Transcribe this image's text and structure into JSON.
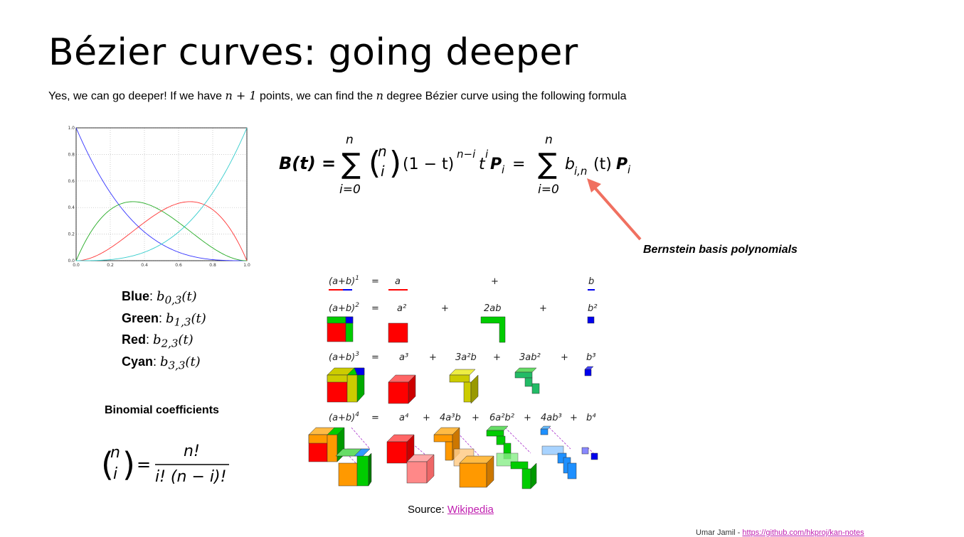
{
  "slide": {
    "title": "Bézier curves: going deeper",
    "subtitle_pre": "Yes, we can go deeper! If we have ",
    "subtitle_n1": "n + 1",
    "subtitle_mid": " points, we can find the ",
    "subtitle_n": "n",
    "subtitle_post": " degree Bézier curve using the following formula",
    "bernstein_label": "Bernstein basis polynomials",
    "binomial_label": "Binomial coefficients",
    "source_prefix": "Source: ",
    "source_link": "Wikipedia",
    "footer_author": "Umar Jamil - ",
    "footer_link": "https://github.com/hkproj/kan-notes"
  },
  "legend": [
    {
      "color_name": "Blue",
      "basis": "b",
      "sub": "0,3",
      "arg": "(t)"
    },
    {
      "color_name": "Green",
      "basis": "b",
      "sub": "1,3",
      "arg": "(t)"
    },
    {
      "color_name": "Red",
      "basis": "b",
      "sub": "2,3",
      "arg": "(t)"
    },
    {
      "color_name": "Cyan",
      "basis": "b",
      "sub": "3,3",
      "arg": "(t)"
    }
  ],
  "chart_data": {
    "type": "line",
    "xlim": [
      0,
      1
    ],
    "ylim": [
      0,
      1
    ],
    "xticks": [
      "0.0",
      "0.2",
      "0.4",
      "0.6",
      "0.8",
      "1.0"
    ],
    "yticks": [
      "0.0",
      "0.2",
      "0.4",
      "0.6",
      "0.8",
      "1.0"
    ],
    "grid": true,
    "series": [
      {
        "color": "#3333ff",
        "degree": 3,
        "i": 0
      },
      {
        "color": "#22aa22",
        "degree": 3,
        "i": 1
      },
      {
        "color": "#ff3333",
        "degree": 3,
        "i": 2
      },
      {
        "color": "#33cccc",
        "degree": 3,
        "i": 3
      }
    ]
  },
  "binomial": {
    "rows": [
      {
        "lhs_base": "(a+b)",
        "lhs_exp": "1",
        "eq": "=",
        "terms": [
          {
            "t": "a"
          },
          {
            "t": "+"
          },
          {
            "t": "b"
          }
        ]
      },
      {
        "lhs_base": "(a+b)",
        "lhs_exp": "2",
        "eq": "=",
        "terms": [
          {
            "t": "a²"
          },
          {
            "t": "+"
          },
          {
            "t": "2ab"
          },
          {
            "t": "+"
          },
          {
            "t": "b²"
          }
        ]
      },
      {
        "lhs_base": "(a+b)",
        "lhs_exp": "3",
        "eq": "=",
        "terms": [
          {
            "t": "a³"
          },
          {
            "t": "+"
          },
          {
            "t": "3a²b"
          },
          {
            "t": "+"
          },
          {
            "t": "3ab²"
          },
          {
            "t": "+"
          },
          {
            "t": "b³"
          }
        ]
      },
      {
        "lhs_base": "(a+b)",
        "lhs_exp": "4",
        "eq": "=",
        "terms": [
          {
            "t": "a⁴"
          },
          {
            "t": "+"
          },
          {
            "t": "4a³b"
          },
          {
            "t": "+"
          },
          {
            "t": "6a²b²"
          },
          {
            "t": "+"
          },
          {
            "t": "4ab³"
          },
          {
            "t": "+"
          },
          {
            "t": "b⁴"
          }
        ]
      }
    ]
  },
  "formula": {
    "lhs": "B(t) =",
    "sum_top": "n",
    "sum_bottom": "i=0",
    "binom_top": "n",
    "binom_bottom": "i",
    "term": "(1 − t)",
    "term_exp": "n−i",
    "t_pow": "t",
    "t_exp": "i",
    "P": "P",
    "P_sub": "i",
    "eq2": "=",
    "b_term": "b",
    "b_sub": "i,n",
    "b_arg": "(t)"
  },
  "binom_formula": {
    "top": "n",
    "bottom": "i",
    "eq": "=",
    "num": "n!",
    "den": "i! (n − i)!"
  },
  "colors": {
    "arrow": "#f07060",
    "red": "#ff0000",
    "green": "#00cc00",
    "blue": "#0000ee",
    "yellow": "#cccc00",
    "orange": "#ff9900",
    "light_blue": "#33aaff"
  }
}
